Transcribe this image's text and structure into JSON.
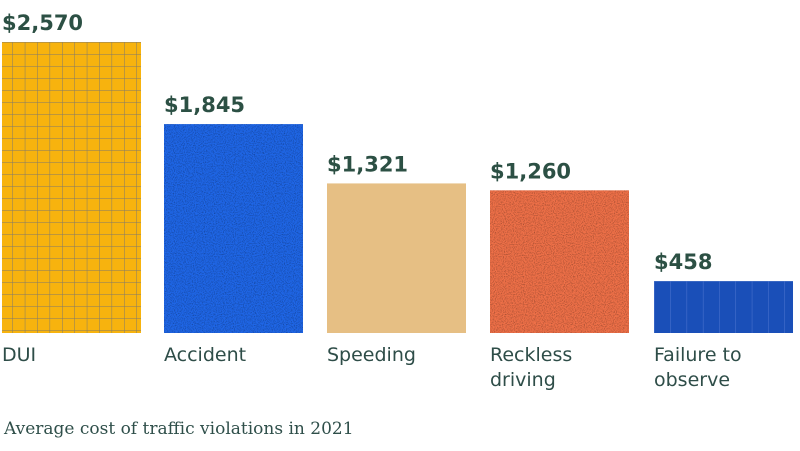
{
  "caption": "Average cost of traffic violations in 2021",
  "colors": {
    "value_text": "#2c5044",
    "label_text": "#2e4d48",
    "grid_line": "#6b6f7c"
  },
  "chart_data": {
    "type": "bar",
    "title": "",
    "xlabel": "",
    "ylabel": "",
    "ylim": [
      0,
      2570
    ],
    "grid": false,
    "categories": [
      "DUI",
      "Accident",
      "Speeding",
      "Reckless driving",
      "Failure to observe"
    ],
    "category_lines": [
      [
        "DUI"
      ],
      [
        "Accident"
      ],
      [
        "Speeding"
      ],
      [
        "Reckless",
        "driving"
      ],
      [
        "Failure to",
        "observe"
      ]
    ],
    "values": [
      2570,
      1845,
      1321,
      1260,
      458
    ],
    "value_labels": [
      "$2,570",
      "$1,845",
      "$1,321",
      "$1,260",
      "$458"
    ],
    "bar_colors": [
      "#f7b30e",
      "#1f66e6",
      "#e6bf84",
      "#ee7048",
      "#1a4fb8"
    ],
    "bar_textures": [
      "grid",
      "speckle",
      "none",
      "speckle",
      "vlines"
    ]
  }
}
